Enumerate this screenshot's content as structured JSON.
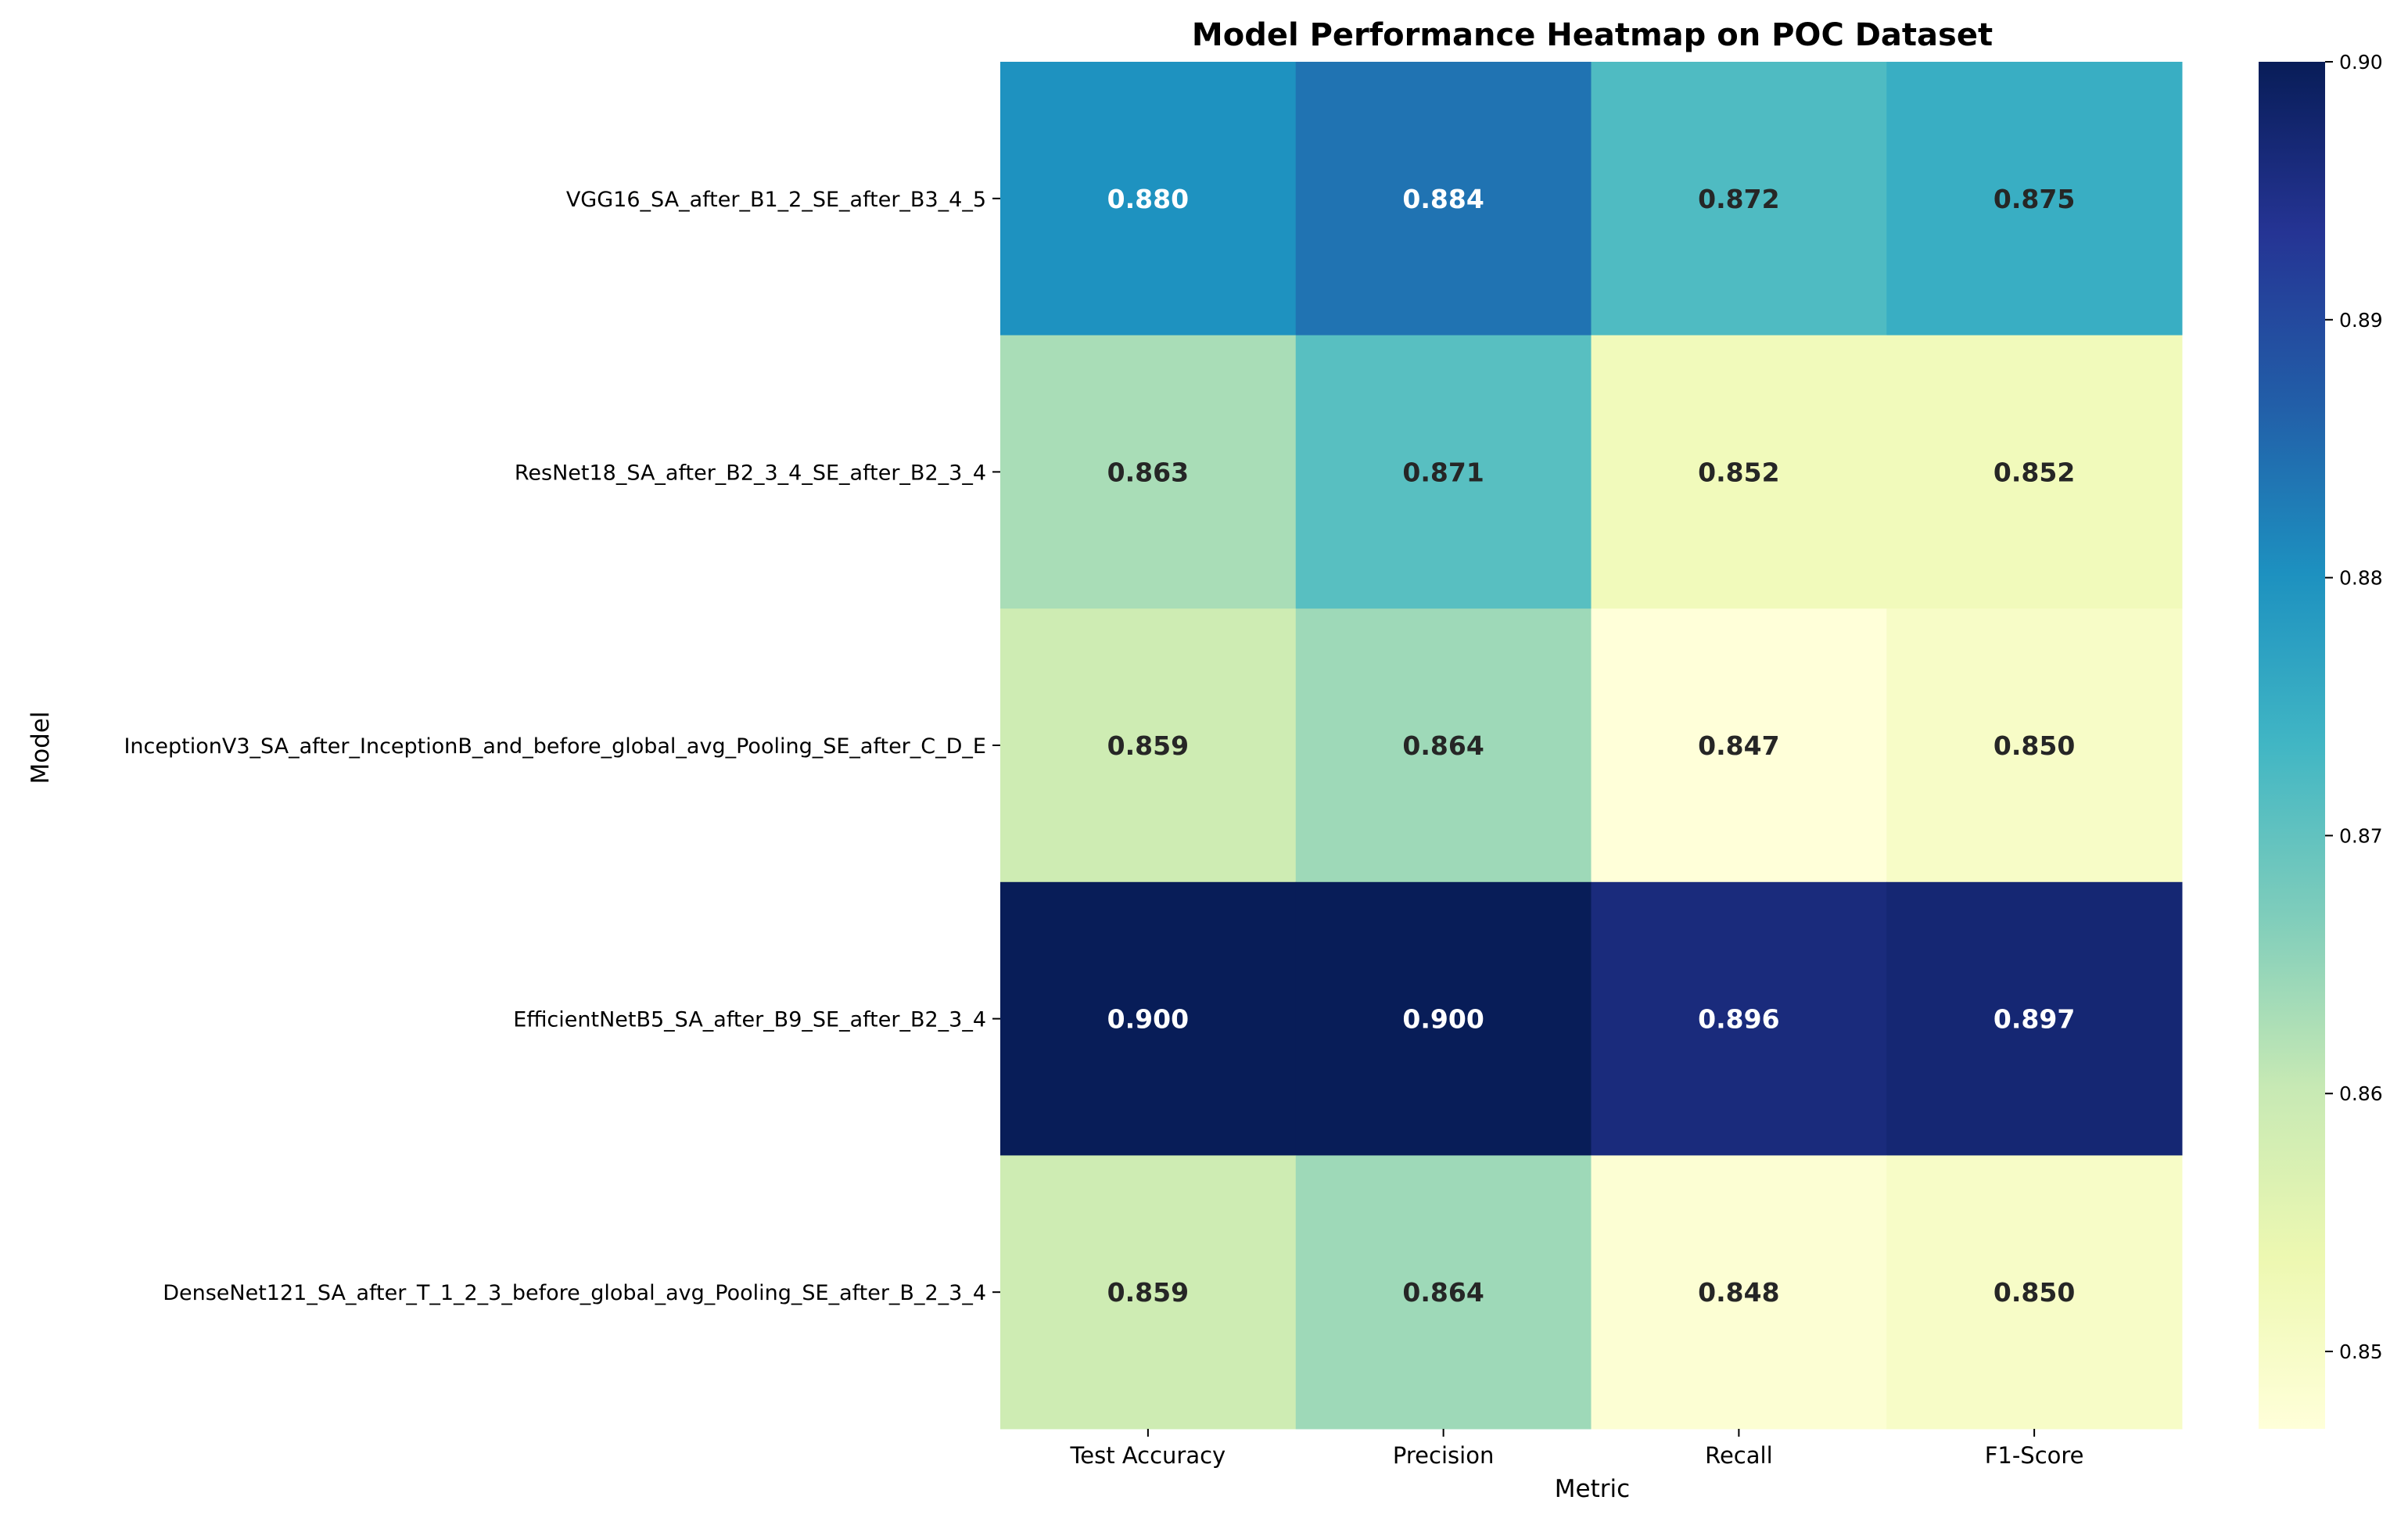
{
  "chart_data": {
    "type": "heatmap",
    "title": "Model Performance Heatmap on POC Dataset",
    "xlabel": "Metric",
    "ylabel": "Model",
    "x_categories": [
      "Test Accuracy",
      "Precision",
      "Recall",
      "F1-Score"
    ],
    "y_categories": [
      "VGG16_SA_after_B1_2_SE_after_B3_4_5",
      "ResNet18_SA_after_B2_3_4_SE_after_B2_3_4",
      "InceptionV3_SA_after_InceptionB_and_before_global_avg_Pooling_SE_after_C_D_E",
      "EfficientNetB5_SA_after_B9_SE_after_B2_3_4",
      "DenseNet121_SA_after_T_1_2_3_before_global_avg_Pooling_SE_after_B_2_3_4"
    ],
    "values": [
      [
        0.88,
        0.884,
        0.872,
        0.875
      ],
      [
        0.863,
        0.871,
        0.852,
        0.852
      ],
      [
        0.859,
        0.864,
        0.847,
        0.85
      ],
      [
        0.9,
        0.9,
        0.896,
        0.897
      ],
      [
        0.859,
        0.864,
        0.848,
        0.85
      ]
    ],
    "labels": [
      [
        "0.880",
        "0.884",
        "0.872",
        "0.875"
      ],
      [
        "0.863",
        "0.871",
        "0.852",
        "0.852"
      ],
      [
        "0.859",
        "0.864",
        "0.847",
        "0.850"
      ],
      [
        "0.900",
        "0.900",
        "0.896",
        "0.897"
      ],
      [
        "0.859",
        "0.864",
        "0.848",
        "0.850"
      ]
    ],
    "colormap": "YlGnBu",
    "vmin": 0.847,
    "vmax": 0.9,
    "colorbar_ticks": [
      0.85,
      0.86,
      0.87,
      0.88,
      0.89,
      0.9
    ],
    "colorbar_tick_labels": [
      "0.85",
      "0.86",
      "0.87",
      "0.88",
      "0.89",
      "0.90"
    ],
    "colorbar_position": "right",
    "grid": false
  }
}
